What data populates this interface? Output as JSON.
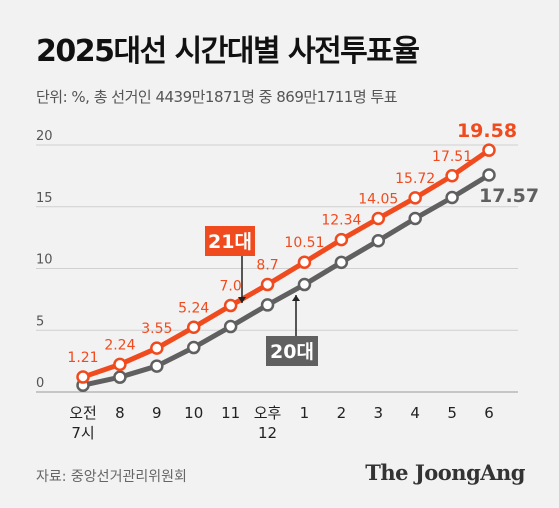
{
  "header": {
    "title": "2025대선 시간대별 사전투표율",
    "subtitle": "단위: %, 총 선거인 4439만1871명 중 869만1711명 투표"
  },
  "footer": {
    "source": "자료: 중앙선거관리위원회",
    "logo": "The JoongAng"
  },
  "colors": {
    "series_21": "#f04b1e",
    "series_20": "#606060",
    "background": "#f2f2f2"
  },
  "chart_data": {
    "type": "line",
    "categories": [
      "오전\n7시",
      "8",
      "9",
      "10",
      "11",
      "오후\n12",
      "1",
      "2",
      "3",
      "4",
      "5",
      "6"
    ],
    "ylim": [
      0,
      20
    ],
    "yticks": [
      0,
      5,
      10,
      15,
      20
    ],
    "grid": true,
    "series": [
      {
        "name": "21대",
        "values": [
          1.21,
          2.24,
          3.55,
          5.24,
          7.0,
          8.7,
          10.51,
          12.34,
          14.05,
          15.72,
          17.51,
          19.58
        ],
        "labels": [
          "1.21",
          "2.24",
          "3.55",
          "5.24",
          "7.0",
          "8.7",
          "10.51",
          "12.34",
          "14.05",
          "15.72",
          "17.51",
          "19.58"
        ]
      },
      {
        "name": "20대",
        "values": [
          0.55,
          1.2,
          2.1,
          3.6,
          5.3,
          7.05,
          8.7,
          10.5,
          12.25,
          14.05,
          15.75,
          17.57
        ],
        "labels": [
          "",
          "",
          "",
          "",
          "",
          "",
          "",
          "",
          "",
          "",
          "",
          "17.57"
        ]
      }
    ]
  }
}
